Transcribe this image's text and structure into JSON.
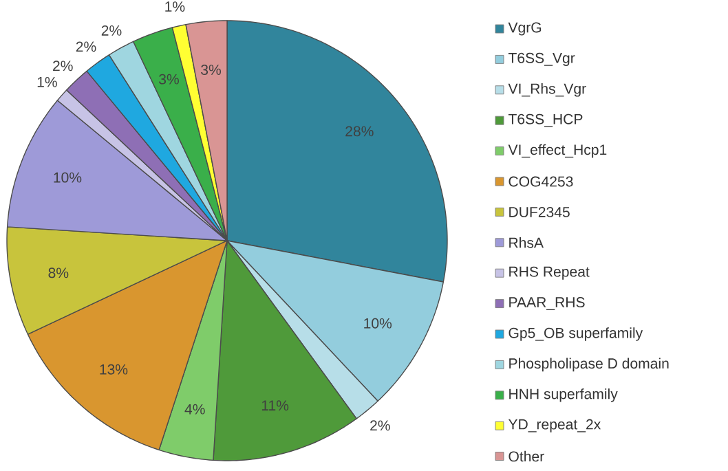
{
  "chart_data": {
    "type": "pie",
    "categories": [
      "VgrG",
      "T6SS_Vgr",
      "VI_Rhs_Vgr",
      "T6SS_HCP",
      "VI_effect_Hcp1",
      "COG4253",
      "DUF2345",
      "RhsA",
      "RHS Repeat",
      "PAAR_RHS",
      "Gp5_OB superfamily",
      "Phospholipase D domain",
      "HNH superfamily",
      "YD_repeat_2x",
      "Other"
    ],
    "values": [
      28,
      10,
      2,
      11,
      4,
      13,
      8,
      10,
      1,
      2,
      2,
      2,
      3,
      1,
      3
    ],
    "value_labels": [
      "28%",
      "10%",
      "2%",
      "11%",
      "4%",
      "13%",
      "8%",
      "10%",
      "1%",
      "2%",
      "2%",
      "2%",
      "3%",
      "1%",
      "3%"
    ],
    "colors": [
      "#31859c",
      "#93cddd",
      "#b7dee8",
      "#4f9a3a",
      "#7fcc6a",
      "#d9962f",
      "#c8c43c",
      "#9e9ad8",
      "#c7c3e6",
      "#8e6fb5",
      "#1fa8e0",
      "#9fd6e0",
      "#3aaf4a",
      "#ffff33",
      "#d99594"
    ],
    "legend": "right"
  }
}
